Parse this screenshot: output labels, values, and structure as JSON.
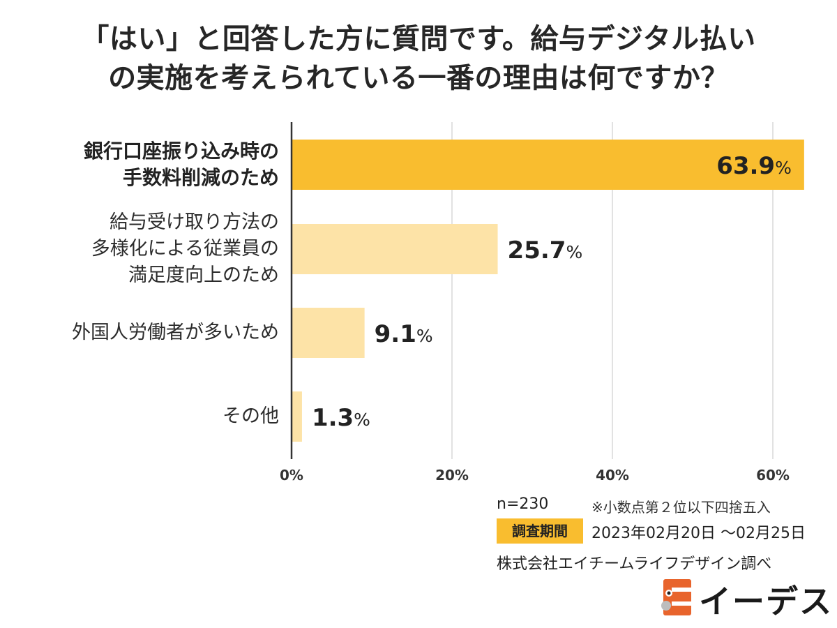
{
  "title": {
    "line1": "「はい」と回答した方に質問です。給与デジタル払い",
    "line2": "の実施を考えられている一番の理由は何ですか？"
  },
  "chart_data": {
    "type": "bar",
    "orientation": "horizontal",
    "categories": [
      [
        "銀行口座振り込み時の",
        "手数料削減のため"
      ],
      [
        "給与受け取り方法の",
        "多様化による従業員の",
        "満足度向上のため"
      ],
      [
        "外国人労働者が多いため"
      ],
      [
        "その他"
      ]
    ],
    "values": [
      63.9,
      25.7,
      9.1,
      1.3
    ],
    "value_labels": [
      "63.9%",
      "25.7%",
      "9.1%",
      "1.3%"
    ],
    "value_unit": "%",
    "xlim": [
      0,
      64
    ],
    "xticks": [
      0,
      20,
      40,
      60
    ],
    "xtick_labels": [
      "0%",
      "20%",
      "40%",
      "60%"
    ],
    "grid": true,
    "colors": {
      "highlight": "#f9bd2f",
      "normal": "#fde3a7",
      "grid": "#d9d9d9",
      "axis": "#333333"
    }
  },
  "footer": {
    "n": "n=230",
    "rounding_note": "※小数点第２位以下四捨五入",
    "period_label": "調査期間",
    "period": "2023年02月20日 ～02月25日",
    "credit": "株式会社エイチームライフデザイン調べ"
  },
  "logo": {
    "text": "イーデス",
    "icon": "mascot-logo-icon",
    "color": "#e8642c"
  }
}
